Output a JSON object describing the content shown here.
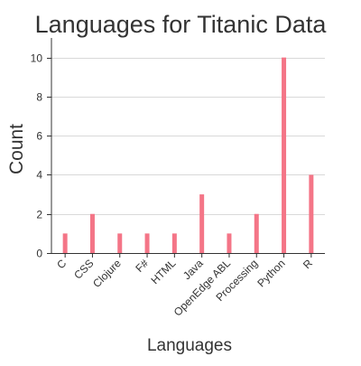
{
  "chart_data": {
    "type": "bar",
    "title": "Languages for Titanic Data",
    "xlabel": "Languages",
    "ylabel": "Count",
    "categories": [
      "C",
      "CSS",
      "Clojure",
      "F#",
      "HTML",
      "Java",
      "OpenEdge ABL",
      "Processing",
      "Python",
      "R"
    ],
    "values": [
      1,
      2,
      1,
      1,
      1,
      3,
      1,
      2,
      10,
      4
    ],
    "y_ticks": [
      "0",
      "2",
      "4",
      "6",
      "8",
      "10"
    ],
    "ylim": [
      0,
      11
    ],
    "grid": true,
    "legend": "none",
    "bar_color": "#f47587"
  }
}
